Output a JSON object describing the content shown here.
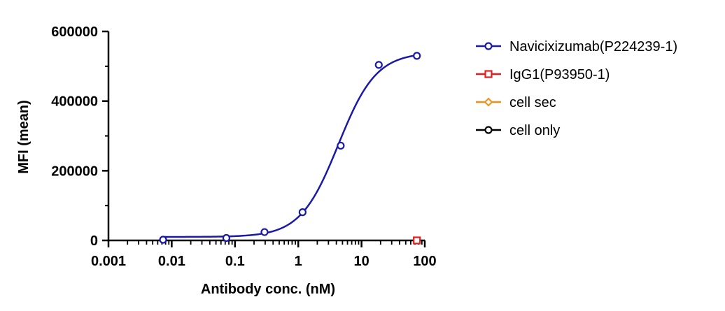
{
  "chart_data": {
    "type": "scatter",
    "xlabel": "Antibody conc. (nM)",
    "ylabel": "MFI (mean)",
    "x_scale": "log",
    "xlim": [
      0.001,
      100
    ],
    "ylim": [
      0,
      600000
    ],
    "x_ticks": [
      "0.001",
      "0.01",
      "0.1",
      "1",
      "10",
      "100"
    ],
    "y_ticks": [
      "0",
      "200000",
      "400000",
      "600000"
    ],
    "grid": false,
    "legend_position": "right",
    "series": [
      {
        "name": "Navicixizumab(P224239-1)",
        "color": "#1a1aa6",
        "marker": "circle",
        "fit": "sigmoidal",
        "fit_params": {
          "bottom": 10000,
          "top": 540000,
          "ec50": 4.3,
          "hill": 1.45
        },
        "x": [
          0.0073,
          0.073,
          0.293,
          1.17,
          4.69,
          18.75,
          75
        ],
        "y": [
          2000,
          7000,
          24000,
          81000,
          272000,
          504000,
          530000
        ]
      },
      {
        "name": "IgG1(P93950-1)",
        "color": "#e02020",
        "marker": "square",
        "x": [
          75
        ],
        "y": [
          0
        ]
      },
      {
        "name": "cell sec",
        "color": "#f0901a",
        "marker": "diamond",
        "x": [],
        "y": []
      },
      {
        "name": "cell only",
        "color": "#000000",
        "marker": "circle",
        "x": [],
        "y": []
      }
    ]
  }
}
